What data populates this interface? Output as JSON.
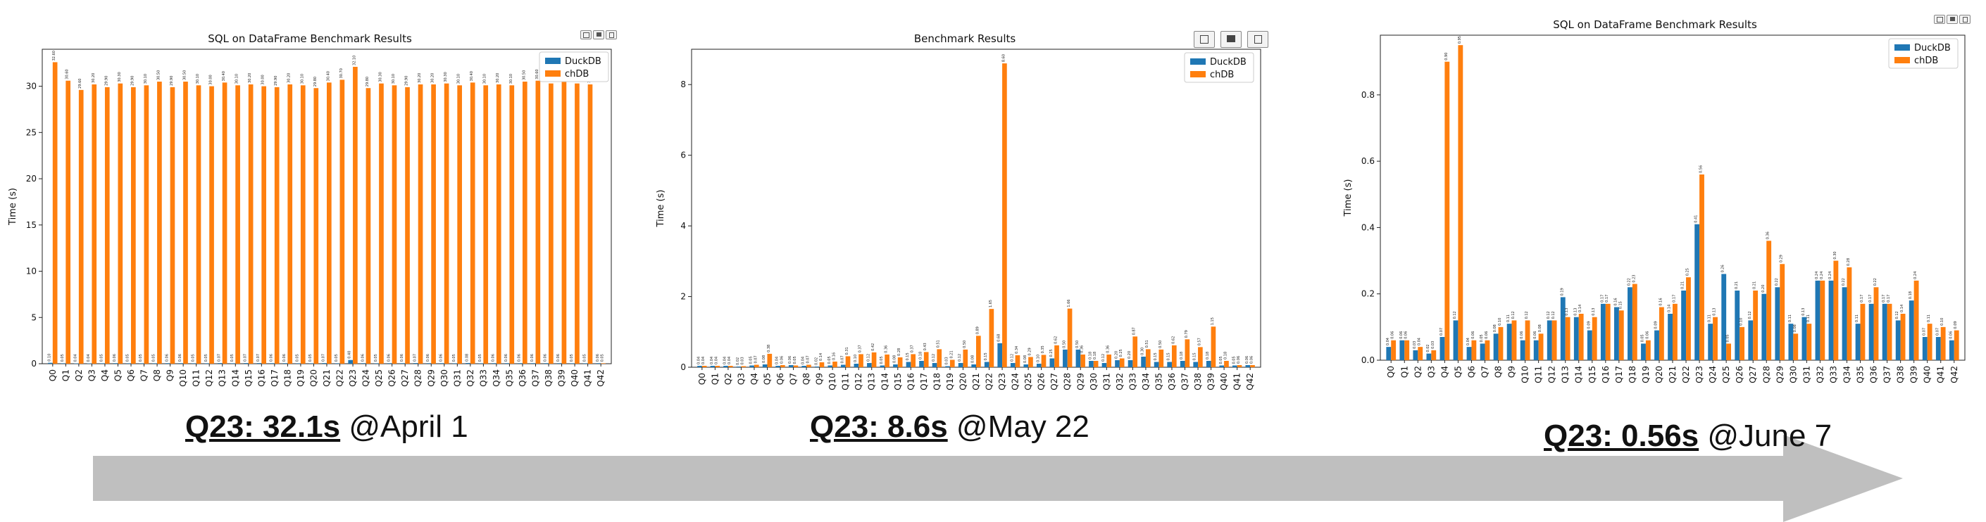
{
  "categories": [
    "Q0",
    "Q1",
    "Q2",
    "Q3",
    "Q4",
    "Q5",
    "Q6",
    "Q7",
    "Q8",
    "Q9",
    "Q10",
    "Q11",
    "Q12",
    "Q13",
    "Q14",
    "Q15",
    "Q16",
    "Q17",
    "Q18",
    "Q19",
    "Q20",
    "Q21",
    "Q22",
    "Q23",
    "Q24",
    "Q25",
    "Q26",
    "Q27",
    "Q28",
    "Q29",
    "Q30",
    "Q31",
    "Q32",
    "Q33",
    "Q34",
    "Q35",
    "Q36",
    "Q37",
    "Q38",
    "Q39",
    "Q40",
    "Q41",
    "Q42"
  ],
  "colors": {
    "duckdb": "#1f77b4",
    "chdb": "#ff7f0e",
    "arrow": "#bfbfbf"
  },
  "captions": [
    {
      "bold": "Q23: 32.1s",
      "rest": " @April 1"
    },
    {
      "bold": "Q23: 8.6s",
      "rest": "  @May 22"
    },
    {
      "bold": "Q23: 0.56s",
      "rest": "  @June 7"
    }
  ],
  "chart_data": [
    {
      "type": "bar",
      "title": "SQL on DataFrame Benchmark Results",
      "ylabel": "Time (s)",
      "ylim": [
        0,
        34
      ],
      "yticks": [
        0,
        5,
        10,
        15,
        20,
        25,
        30
      ],
      "grid": false,
      "legend_position": "top-right",
      "series": [
        {
          "name": "DuckDB",
          "values": [
            0.1,
            0.05,
            0.04,
            0.04,
            0.05,
            0.06,
            0.05,
            0.05,
            0.05,
            0.06,
            0.06,
            0.05,
            0.05,
            0.07,
            0.05,
            0.07,
            0.07,
            0.06,
            0.06,
            0.05,
            0.05,
            0.07,
            0.05,
            0.4,
            0.06,
            0.05,
            0.06,
            0.06,
            0.07,
            0.06,
            0.06,
            0.05,
            0.08,
            0.05,
            0.06,
            0.06,
            0.06,
            0.06,
            0.06,
            0.06,
            0.05,
            0.05,
            0.06
          ]
        },
        {
          "name": "chDB",
          "values": [
            32.6,
            30.6,
            29.6,
            30.2,
            29.9,
            30.3,
            29.9,
            30.1,
            30.5,
            29.9,
            30.5,
            30.1,
            30.0,
            30.4,
            30.1,
            30.2,
            30.0,
            29.9,
            30.2,
            30.1,
            29.8,
            30.4,
            30.7,
            32.1,
            29.8,
            30.3,
            30.1,
            29.9,
            30.2,
            30.2,
            30.3,
            30.1,
            30.4,
            30.1,
            30.2,
            30.1,
            30.5,
            30.6,
            30.3,
            30.6,
            30.3,
            30.2,
            0.05
          ]
        }
      ]
    },
    {
      "type": "bar",
      "title": "Benchmark Results",
      "ylabel": "Time (s)",
      "ylim": [
        0,
        9
      ],
      "yticks": [
        0,
        2,
        4,
        6,
        8
      ],
      "grid": false,
      "legend_position": "top-right",
      "series": [
        {
          "name": "DuckDB",
          "values": [
            0.04,
            0.04,
            0.04,
            0.02,
            0.05,
            0.08,
            0.04,
            0.06,
            0.04,
            0.02,
            0.05,
            0.07,
            0.1,
            0.12,
            0.05,
            0.08,
            0.15,
            0.18,
            0.12,
            0.03,
            0.12,
            0.08,
            0.15,
            0.68,
            0.12,
            0.08,
            0.1,
            0.25,
            0.5,
            0.5,
            0.18,
            0.12,
            0.2,
            0.2,
            0.3,
            0.15,
            0.15,
            0.18,
            0.15,
            0.18,
            0.05,
            0.05,
            0.06
          ]
        },
        {
          "name": "chDB",
          "values": [
            0.04,
            0.04,
            0.04,
            0.03,
            0.07,
            0.38,
            0.06,
            0.05,
            0.07,
            0.14,
            0.16,
            0.31,
            0.37,
            0.42,
            0.36,
            0.28,
            0.37,
            0.43,
            0.51,
            0.21,
            0.5,
            0.89,
            1.65,
            8.6,
            0.34,
            0.29,
            0.35,
            0.62,
            1.66,
            0.36,
            0.18,
            0.36,
            0.25,
            0.87,
            0.51,
            0.5,
            0.62,
            0.79,
            0.57,
            1.15,
            0.18,
            0.06,
            0.06
          ]
        }
      ]
    },
    {
      "type": "bar",
      "title": "SQL on DataFrame Benchmark Results",
      "ylabel": "Time (s)",
      "ylim": [
        0,
        0.98
      ],
      "yticks": [
        0.0,
        0.2,
        0.4,
        0.6,
        0.8
      ],
      "grid": false,
      "legend_position": "top-right",
      "series": [
        {
          "name": "DuckDB",
          "values": [
            0.04,
            0.06,
            0.03,
            0.02,
            0.07,
            0.12,
            0.04,
            0.05,
            0.08,
            0.11,
            0.06,
            0.06,
            0.12,
            0.19,
            0.13,
            0.09,
            0.17,
            0.16,
            0.22,
            0.05,
            0.09,
            0.14,
            0.21,
            0.41,
            0.11,
            0.26,
            0.21,
            0.12,
            0.2,
            0.22,
            0.11,
            0.13,
            0.24,
            0.24,
            0.22,
            0.11,
            0.17,
            0.17,
            0.12,
            0.18,
            0.07,
            0.07,
            0.06
          ]
        },
        {
          "name": "chDB",
          "values": [
            0.06,
            0.06,
            0.04,
            0.03,
            0.9,
            0.95,
            0.06,
            0.06,
            0.1,
            0.12,
            0.12,
            0.08,
            0.12,
            0.13,
            0.14,
            0.13,
            0.17,
            0.15,
            0.23,
            0.06,
            0.16,
            0.17,
            0.25,
            0.56,
            0.13,
            0.05,
            0.1,
            0.21,
            0.36,
            0.29,
            0.08,
            0.11,
            0.24,
            0.3,
            0.28,
            0.17,
            0.22,
            0.17,
            0.14,
            0.24,
            0.11,
            0.1,
            0.09
          ]
        }
      ]
    }
  ]
}
